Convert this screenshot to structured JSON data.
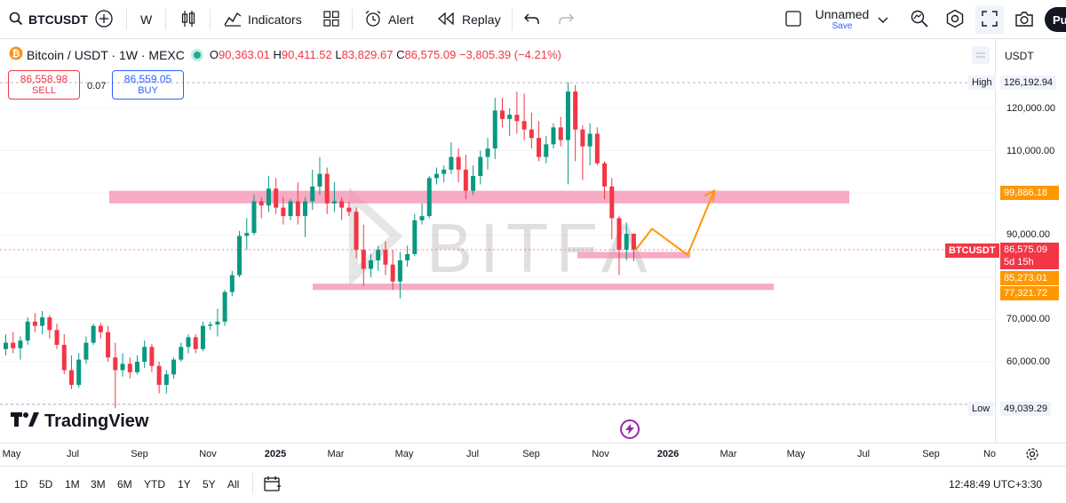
{
  "toolbar": {
    "symbol": "BTCUSDT",
    "interval": "W",
    "indicators_label": "Indicators",
    "alert_label": "Alert",
    "replay_label": "Replay",
    "layout_name": "Unnamed",
    "layout_sub": "Save",
    "publish_label": "Pu"
  },
  "legend": {
    "title": "Bitcoin / USDT · 1W · MEXC",
    "o_label": "O",
    "o": "90,363.01",
    "h_label": "H",
    "h": "90,411.52",
    "l_label": "L",
    "l": "83,829.67",
    "c_label": "C",
    "c": "86,575.09",
    "change": "−3,805.39 (−4.21%)"
  },
  "trade": {
    "sell_price": "86,558.98",
    "sell_label": "SELL",
    "spread": "0.07",
    "buy_price": "86,559.05",
    "buy_label": "BUY"
  },
  "price_axis": {
    "currency": "USDT",
    "ticks": [
      "120,000.00",
      "110,000.00",
      "90,000.00",
      "70,000.00",
      "60,000.00"
    ],
    "high_label": "High",
    "high_value": "126,192.94",
    "low_label": "Low",
    "low_value": "49,039.29",
    "zone_top": "99,886.18",
    "symbol_tag": "BTCUSDT",
    "last_price": "86,575.09",
    "countdown": "5d 15h",
    "zone_mid": "85,273.01",
    "zone_low": "77,321.72"
  },
  "time_axis": {
    "labels": [
      "May",
      "Jul",
      "Sep",
      "Nov",
      "2025",
      "Mar",
      "May",
      "Jul",
      "Sep",
      "Nov",
      "2026",
      "Mar",
      "May",
      "Jul",
      "Sep",
      "No"
    ]
  },
  "watermark": {
    "brand": "TradingView",
    "overlay": "BITFA"
  },
  "bottom": {
    "ranges": [
      "1D",
      "5D",
      "1M",
      "3M",
      "6M",
      "YTD",
      "1Y",
      "5Y",
      "All"
    ],
    "clock": "12:48:49 UTC+3:30"
  },
  "colors": {
    "up": "#089981",
    "down": "#f23645",
    "zone": "#f48fb1",
    "projection": "#ff9800",
    "accent": "#2962ff"
  },
  "chart_data": {
    "type": "candlestick",
    "title": "Bitcoin / USDT · 1W · MEXC",
    "ylim": [
      48000,
      130000
    ],
    "zones": [
      {
        "from": 97500,
        "to": 100500
      },
      {
        "from": 84500,
        "to": 86000
      },
      {
        "from": 77000,
        "to": 78500
      }
    ],
    "projection": [
      86575,
      91500,
      85300,
      100500
    ],
    "candles": [
      [
        63000,
        66500,
        61500,
        64500
      ],
      [
        64500,
        67000,
        62000,
        63200
      ],
      [
        63200,
        66000,
        60500,
        65000
      ],
      [
        65000,
        70500,
        64000,
        69500
      ],
      [
        69500,
        71500,
        67000,
        68500
      ],
      [
        68500,
        72000,
        66500,
        70500
      ],
      [
        70500,
        71000,
        65500,
        67500
      ],
      [
        67500,
        69000,
        63000,
        64000
      ],
      [
        64000,
        66500,
        57000,
        58000
      ],
      [
        58000,
        61500,
        53500,
        54500
      ],
      [
        54500,
        62000,
        53800,
        60500
      ],
      [
        60500,
        66000,
        59500,
        64500
      ],
      [
        64500,
        69000,
        64000,
        68500
      ],
      [
        68500,
        69200,
        65500,
        67000
      ],
      [
        67000,
        68500,
        60000,
        61000
      ],
      [
        61000,
        64500,
        49000,
        58000
      ],
      [
        58000,
        62000,
        56500,
        59500
      ],
      [
        59500,
        61000,
        56000,
        57500
      ],
      [
        57500,
        61500,
        57000,
        60000
      ],
      [
        60000,
        65000,
        58500,
        63500
      ],
      [
        63500,
        64200,
        57500,
        59000
      ],
      [
        59000,
        60000,
        52500,
        54500
      ],
      [
        54500,
        58000,
        52500,
        57000
      ],
      [
        57000,
        61000,
        56000,
        60500
      ],
      [
        60500,
        64500,
        60000,
        63500
      ],
      [
        63500,
        66500,
        62000,
        65800
      ],
      [
        65800,
        66500,
        62000,
        63000
      ],
      [
        63000,
        69500,
        62500,
        68500
      ],
      [
        68500,
        69500,
        67500,
        68800
      ],
      [
        68800,
        72500,
        66000,
        69500
      ],
      [
        69500,
        77000,
        68500,
        76500
      ],
      [
        76500,
        81500,
        75500,
        80500
      ],
      [
        80500,
        91000,
        80000,
        89800
      ],
      [
        89800,
        94000,
        86500,
        90500
      ],
      [
        90500,
        99500,
        90000,
        98000
      ],
      [
        98000,
        99000,
        94000,
        97000
      ],
      [
        97000,
        104000,
        95500,
        101000
      ],
      [
        101000,
        103500,
        95000,
        96500
      ],
      [
        96500,
        99000,
        92500,
        94500
      ],
      [
        94500,
        98500,
        93500,
        98000
      ],
      [
        98000,
        102500,
        92500,
        94500
      ],
      [
        94500,
        99000,
        89500,
        98000
      ],
      [
        98000,
        105500,
        96000,
        101500
      ],
      [
        101500,
        108500,
        99500,
        104500
      ],
      [
        104500,
        106000,
        95000,
        97500
      ],
      [
        97500,
        102500,
        95500,
        98000
      ],
      [
        98000,
        99000,
        93500,
        96500
      ],
      [
        96500,
        98000,
        94500,
        95500
      ],
      [
        95500,
        96500,
        84500,
        86500
      ],
      [
        86500,
        92500,
        78000,
        82000
      ],
      [
        82000,
        85500,
        80000,
        84000
      ],
      [
        84000,
        87500,
        81500,
        86500
      ],
      [
        86500,
        88500,
        80500,
        83000
      ],
      [
        83000,
        86500,
        77000,
        79000
      ],
      [
        79000,
        86000,
        75000,
        84000
      ],
      [
        84000,
        87500,
        82500,
        85500
      ],
      [
        85500,
        95000,
        85000,
        93500
      ],
      [
        93500,
        97500,
        92500,
        94500
      ],
      [
        94500,
        104000,
        94000,
        103500
      ],
      [
        103500,
        106000,
        102000,
        104500
      ],
      [
        104500,
        106500,
        102500,
        105500
      ],
      [
        105500,
        112000,
        104500,
        108500
      ],
      [
        108500,
        110500,
        102500,
        105500
      ],
      [
        105500,
        109000,
        98500,
        100500
      ],
      [
        100500,
        106500,
        99500,
        104000
      ],
      [
        104000,
        110000,
        102000,
        108500
      ],
      [
        108500,
        113000,
        105500,
        110500
      ],
      [
        110500,
        122500,
        108000,
        119500
      ],
      [
        119500,
        122500,
        115500,
        117500
      ],
      [
        117500,
        120000,
        113500,
        118500
      ],
      [
        118500,
        124000,
        114000,
        117000
      ],
      [
        117000,
        123500,
        112500,
        115000
      ],
      [
        115000,
        119000,
        110500,
        113000
      ],
      [
        113000,
        117000,
        107500,
        108500
      ],
      [
        108500,
        113500,
        107000,
        111500
      ],
      [
        111500,
        116500,
        110500,
        115500
      ],
      [
        115500,
        118000,
        111000,
        112500
      ],
      [
        112500,
        126200,
        102000,
        124000
      ],
      [
        124000,
        125500,
        107500,
        115000
      ],
      [
        115000,
        116000,
        103000,
        111000
      ],
      [
        111000,
        116500,
        106500,
        114000
      ],
      [
        114000,
        115500,
        106500,
        107000
      ],
      [
        107000,
        107500,
        98500,
        101500
      ],
      [
        101500,
        103500,
        89000,
        94000
      ],
      [
        94000,
        94500,
        80500,
        86500
      ],
      [
        86500,
        93000,
        84000,
        90300
      ],
      [
        90300,
        90400,
        83800,
        86575
      ]
    ]
  }
}
